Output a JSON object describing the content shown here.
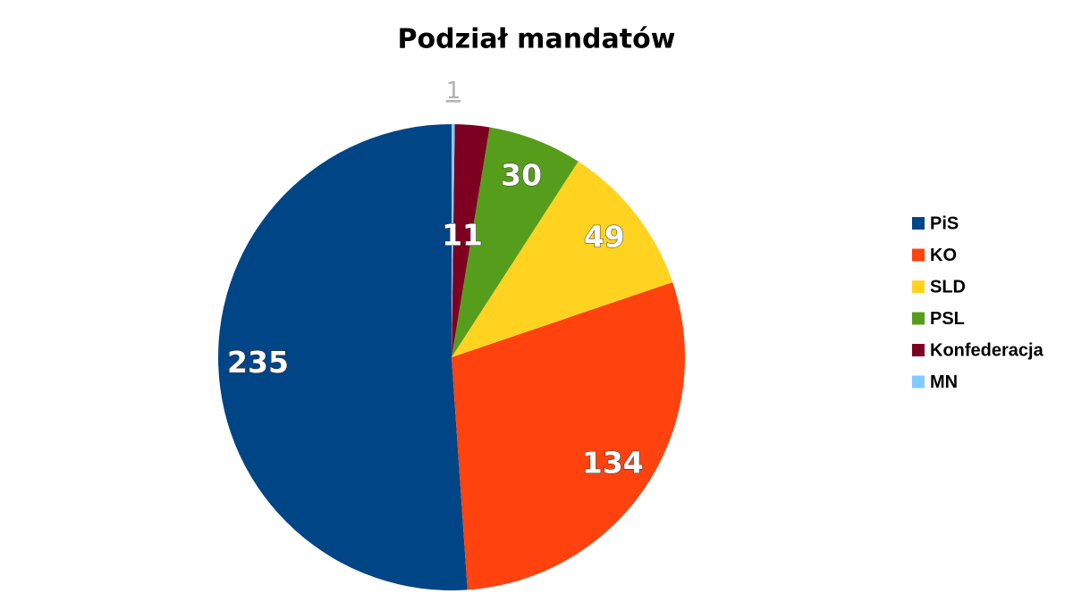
{
  "chart_data": {
    "type": "pie",
    "title": "Podział mandatów",
    "categories": [
      "PiS",
      "KO",
      "SLD",
      "PSL",
      "Konfederacja",
      "MN"
    ],
    "values": [
      235,
      134,
      49,
      30,
      11,
      1
    ],
    "colors": [
      "#004586",
      "#ff420e",
      "#ffd320",
      "#579d1c",
      "#7e0021",
      "#83caff"
    ],
    "legend": "right"
  }
}
